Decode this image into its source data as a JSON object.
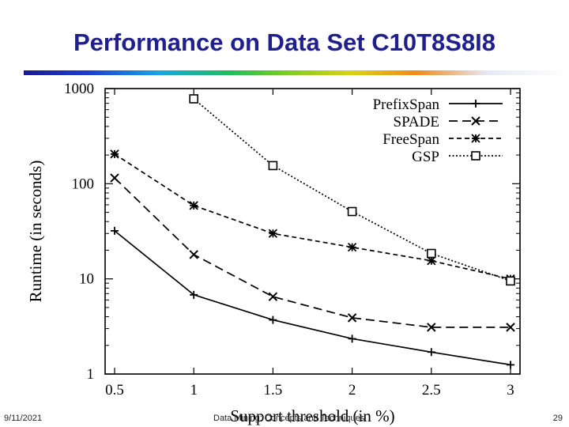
{
  "slide": {
    "title": "Performance on Data Set C10T8S8I8",
    "footer_date": "9/11/2021",
    "footer_center": "Data Mining: Concepts and Techniques",
    "page_number": "29"
  },
  "chart_data": {
    "type": "line",
    "title": "",
    "xlabel": "Support threshold (in %)",
    "ylabel": "Runtime (in seconds)",
    "x_ticks": [
      "0.5",
      "1",
      "1.5",
      "2",
      "2.5",
      "3"
    ],
    "y_ticks": [
      "1",
      "10",
      "100",
      "1000"
    ],
    "xlim": [
      0.5,
      3
    ],
    "ylim": [
      1,
      1000
    ],
    "y_scale": "log",
    "grid": false,
    "legend_position": "top-right",
    "series": [
      {
        "name": "PrefixSpan",
        "dash": "solid",
        "marker": "plus",
        "x": [
          0.5,
          1,
          1.5,
          2,
          2.5,
          3
        ],
        "y": [
          32,
          6.8,
          3.7,
          2.35,
          1.7,
          1.25
        ]
      },
      {
        "name": "SPADE",
        "dash": "dashed",
        "marker": "cross",
        "x": [
          0.5,
          1,
          1.5,
          2,
          2.5,
          3
        ],
        "y": [
          115,
          18,
          6.5,
          3.9,
          3.1,
          3.1
        ]
      },
      {
        "name": "FreeSpan",
        "dash": "short-dashed",
        "marker": "star",
        "x": [
          0.5,
          1,
          1.5,
          2,
          2.5,
          3
        ],
        "y": [
          205,
          59,
          30,
          21.5,
          15.5,
          10
        ]
      },
      {
        "name": "GSP",
        "dash": "dotted",
        "marker": "square",
        "x": [
          1,
          1.5,
          2,
          2.5,
          3
        ],
        "y": [
          780,
          155,
          51,
          18.5,
          9.5
        ]
      }
    ]
  }
}
